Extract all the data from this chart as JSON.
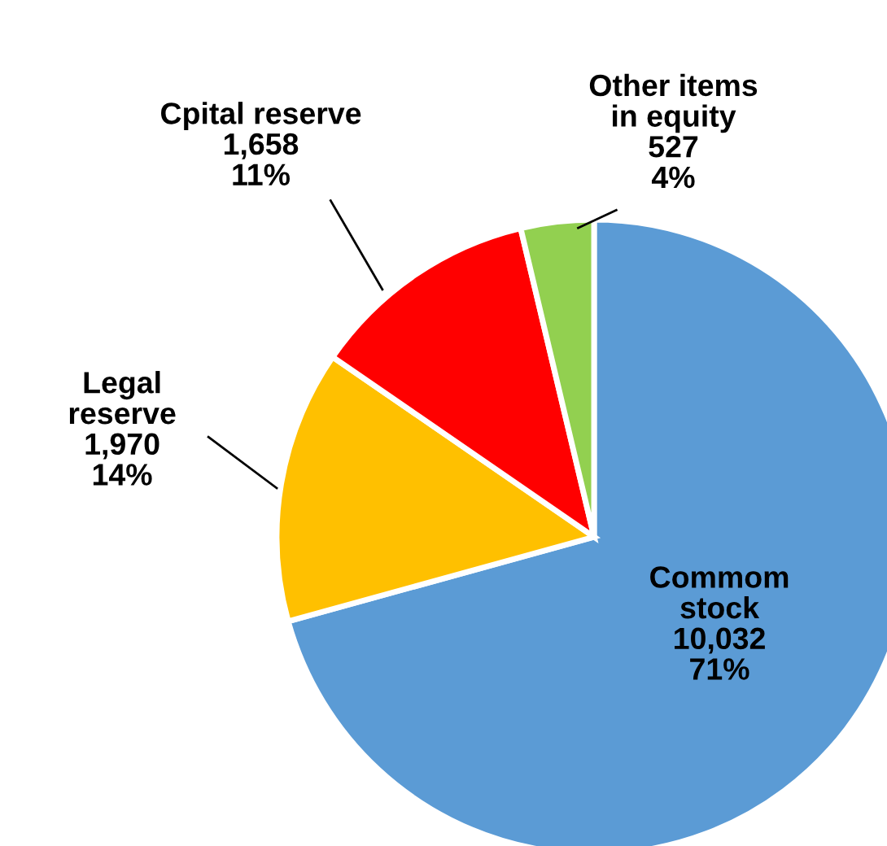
{
  "chart_data": {
    "type": "pie",
    "categories": [
      "Commom\nstock",
      "Legal\nreserve",
      "Cpital reserve",
      "Other items\nin equity"
    ],
    "values": [
      10032,
      1970,
      1658,
      527
    ],
    "colors": [
      "#5b9bd5",
      "#ffc000",
      "#ff0000",
      "#92d050"
    ],
    "value_labels": [
      "10,032\n71%",
      "1,970\n14%",
      "1,658\n11%",
      "527\n4%"
    ],
    "legend": false
  }
}
